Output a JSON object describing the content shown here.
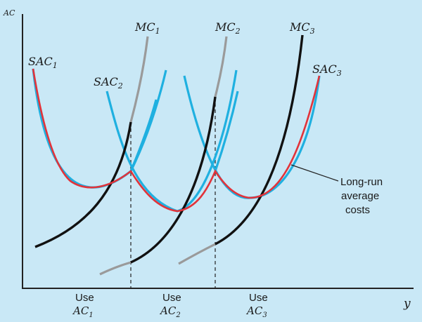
{
  "axes": {
    "y_label": "AC",
    "x_label": "y"
  },
  "curves": {
    "sac1": {
      "base": "SAC",
      "sub": "1"
    },
    "sac2": {
      "base": "SAC",
      "sub": "2"
    },
    "sac3": {
      "base": "SAC",
      "sub": "3"
    },
    "mc1": {
      "base": "MC",
      "sub": "1"
    },
    "mc2": {
      "base": "MC",
      "sub": "2"
    },
    "mc3": {
      "base": "MC",
      "sub": "3"
    }
  },
  "regions": [
    {
      "use": "Use",
      "base": "AC",
      "sub": "1"
    },
    {
      "use": "Use",
      "base": "AC",
      "sub": "2"
    },
    {
      "use": "Use",
      "base": "AC",
      "sub": "3"
    }
  ],
  "long_run_label": [
    "Long-run",
    "average",
    "costs"
  ],
  "colors": {
    "background": "#c9e8f6",
    "sac": "#1fb0e0",
    "lrac": "#e2333a",
    "mc": "#111111",
    "mc_extension": "#9a9a9a",
    "axis": "#222222"
  }
}
